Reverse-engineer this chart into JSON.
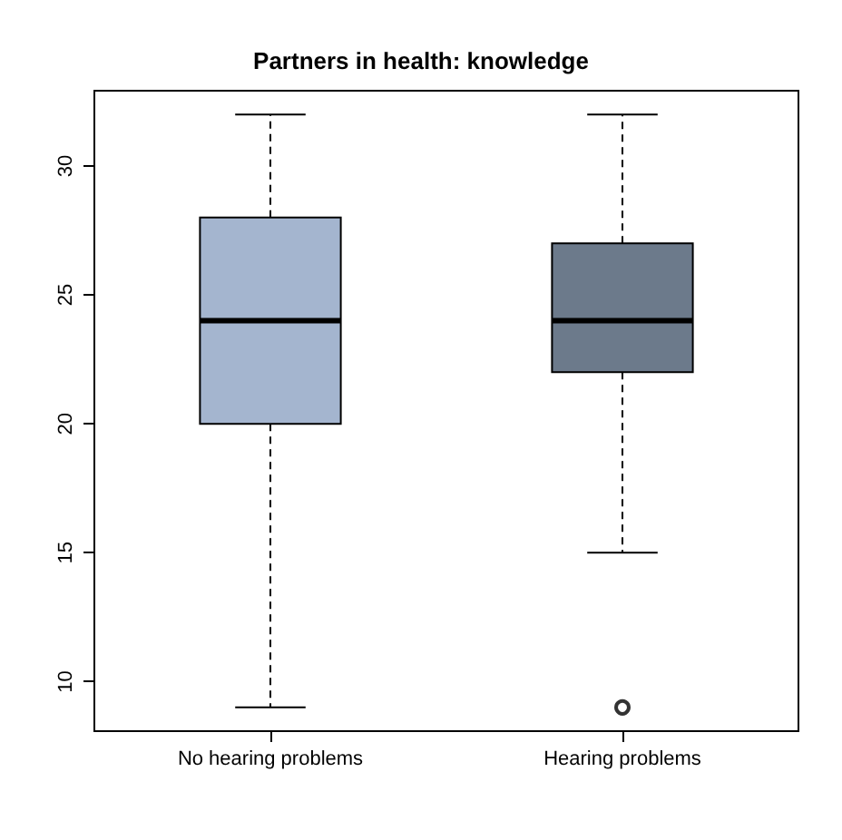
{
  "chart_data": {
    "type": "box",
    "title": "Partners in health: knowledge",
    "categories": [
      "No hearing problems",
      "Hearing problems"
    ],
    "colors": [
      "#a4b5cf",
      "#6c7a8b"
    ],
    "boxes": [
      {
        "low": 9,
        "q1": 20,
        "median": 24,
        "q3": 28,
        "high": 32
      },
      {
        "low": 15,
        "q1": 22,
        "median": 24,
        "q3": 27,
        "high": 32,
        "outliers": [
          9
        ]
      }
    ],
    "ylim": [
      8.08,
      32.92
    ],
    "yticks": [
      10,
      15,
      20,
      25,
      30
    ],
    "grid": false
  }
}
